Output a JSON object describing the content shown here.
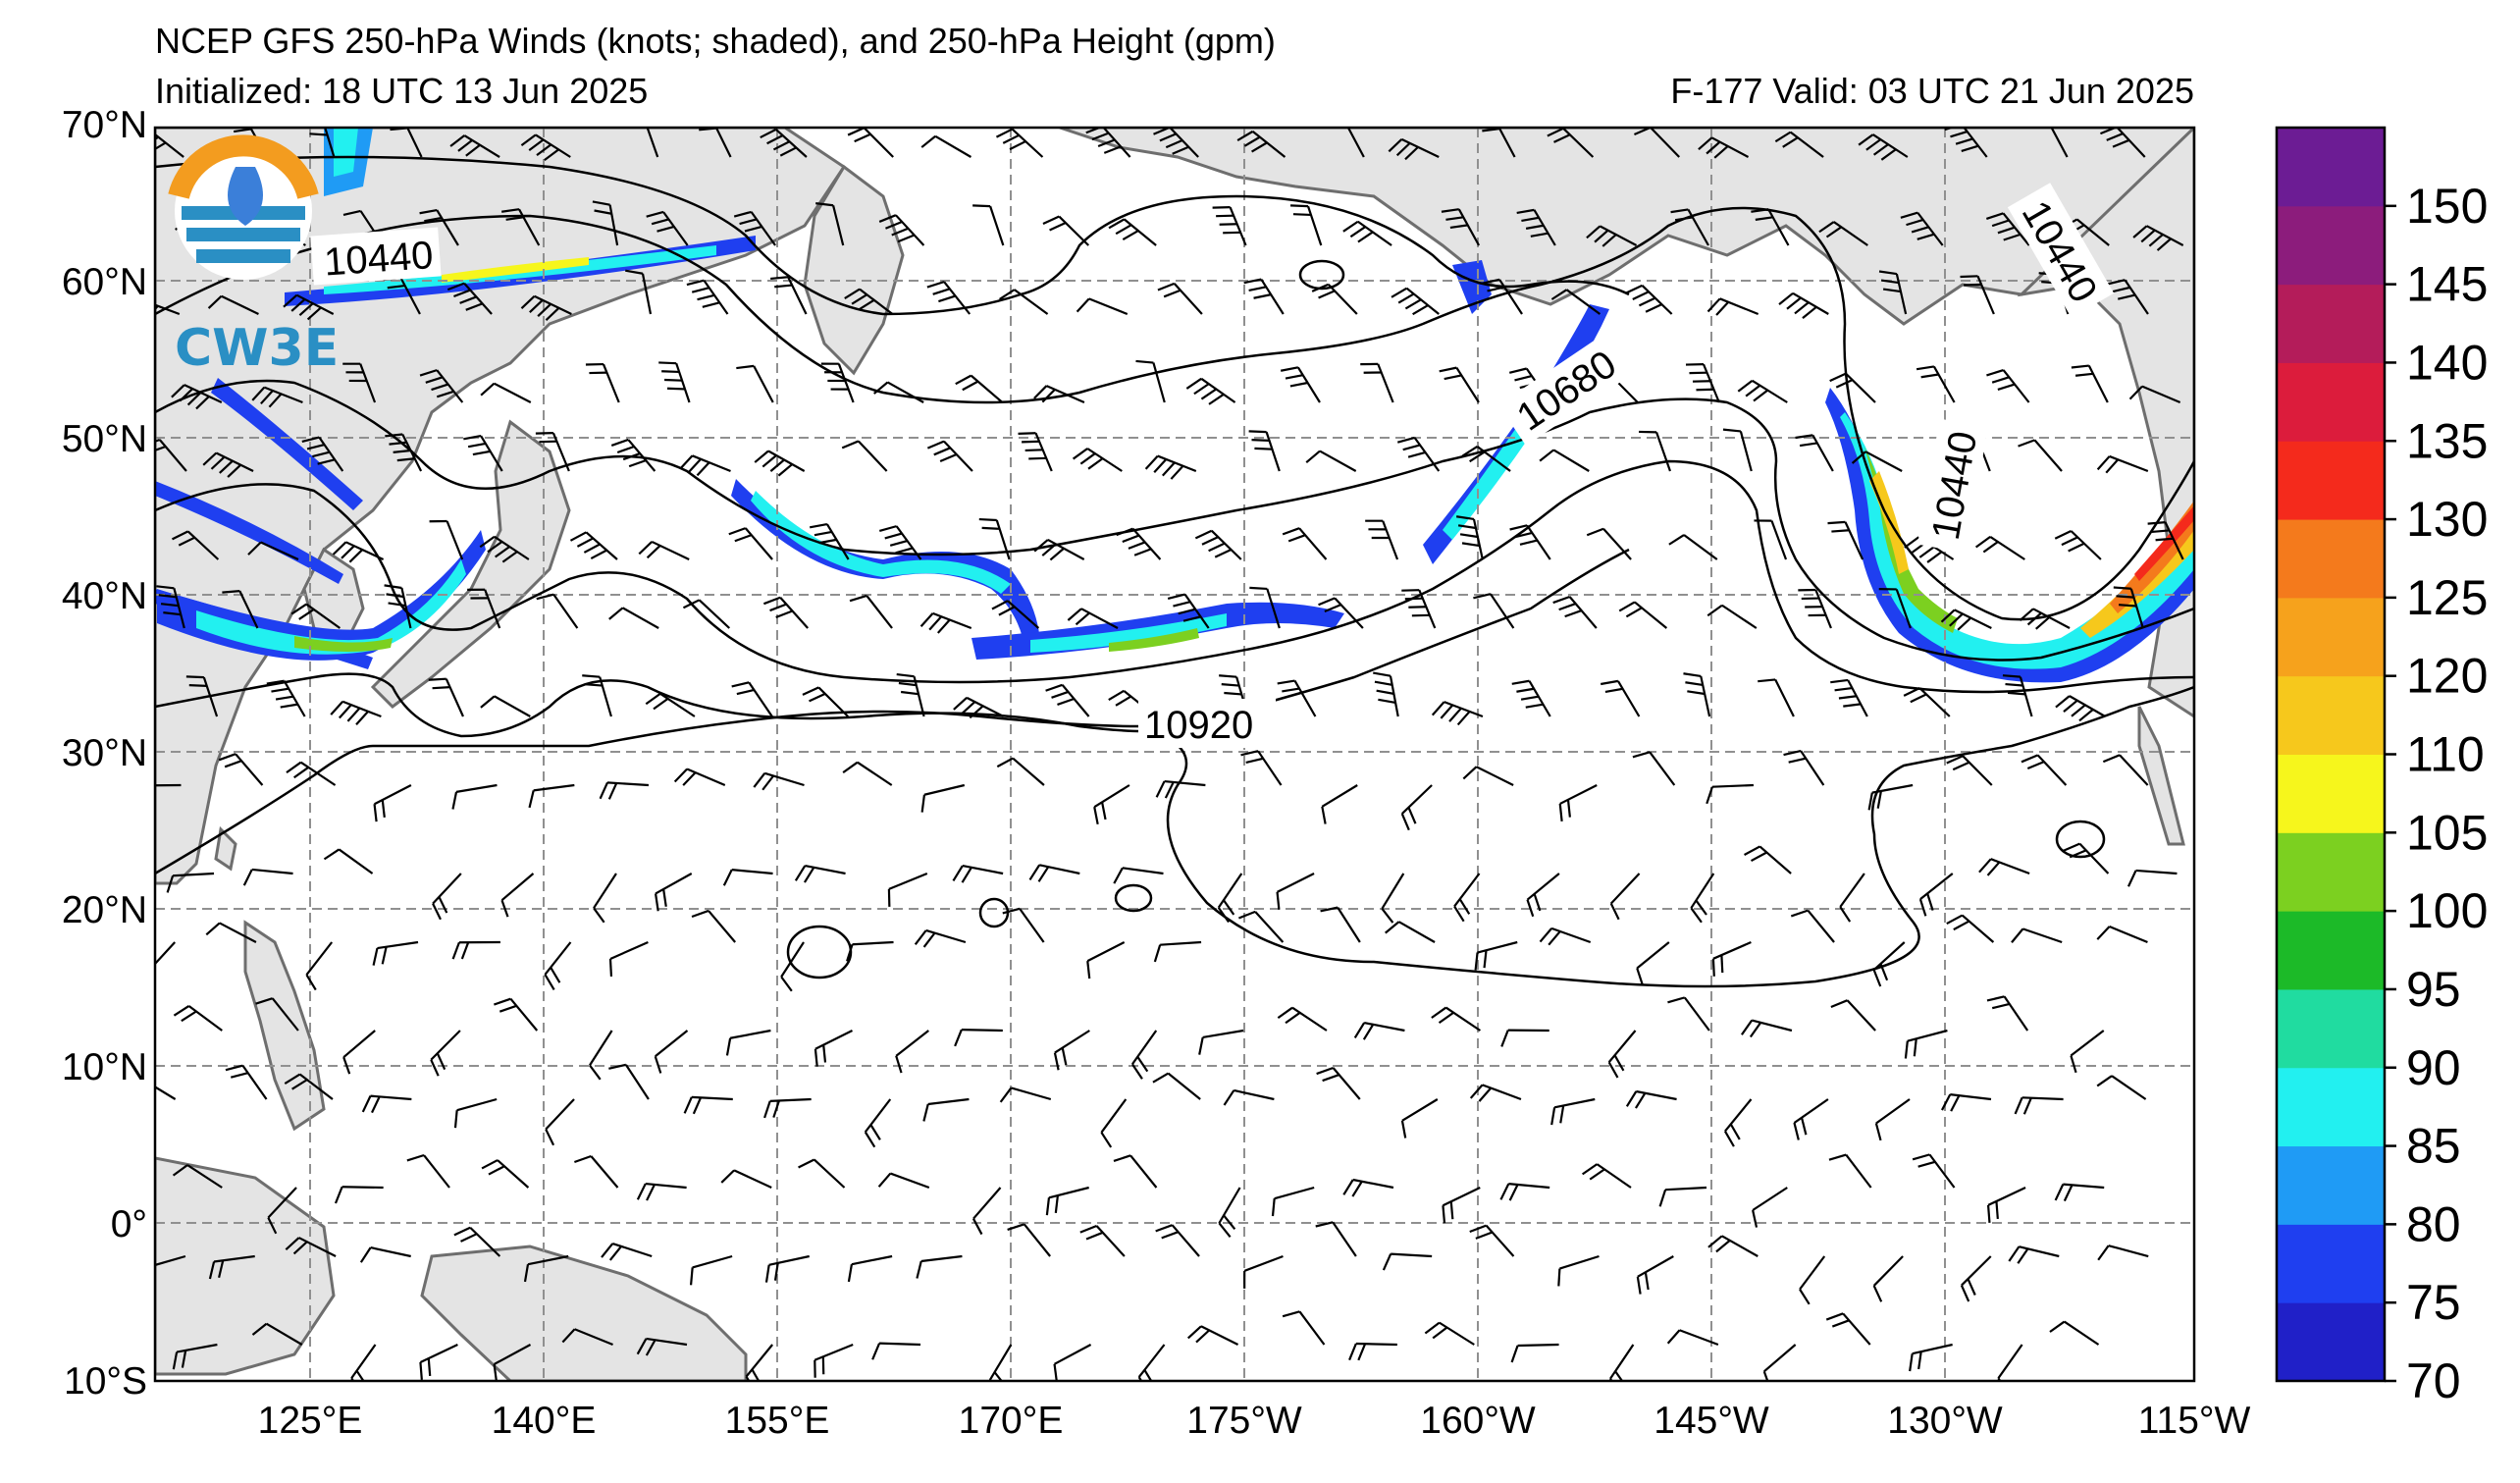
{
  "header": {
    "title": "NCEP GFS 250-hPa Winds (knots; shaded), and 250-hPa Height (gpm)",
    "initialized": "Initialized: 18 UTC 13 Jun 2025",
    "valid": "F-177  Valid: 03 UTC 21 Jun 2025"
  },
  "logo": {
    "text": "CW3E"
  },
  "axes": {
    "lat_labels": [
      "70°N",
      "60°N",
      "50°N",
      "40°N",
      "30°N",
      "20°N",
      "10°N",
      "0°",
      "10°S"
    ],
    "lon_labels": [
      "125°E",
      "140°E",
      "155°E",
      "170°E",
      "175°W",
      "160°W",
      "145°W",
      "130°W",
      "115°W"
    ],
    "lon_extent": "110°E to 115°W",
    "lat_extent": "10°S to 70°N",
    "grid": "dashed gray"
  },
  "contours": {
    "labels": [
      "10440",
      "10680",
      "10920",
      "10440",
      "10440"
    ]
  },
  "colorbar": {
    "ticks": [
      "70",
      "75",
      "80",
      "85",
      "90",
      "95",
      "100",
      "105",
      "110",
      "120",
      "125",
      "130",
      "135",
      "140",
      "145",
      "150"
    ],
    "colors": [
      "#2020c8",
      "#1f3ff0",
      "#1f9bf5",
      "#22f0f0",
      "#20dca0",
      "#1cba28",
      "#7cd020",
      "#f6f61c",
      "#f6c81c",
      "#f6a21c",
      "#f47a1c",
      "#f42a1c",
      "#dc1c3c",
      "#b41c5a",
      "#8c1c7c",
      "#6c1c94"
    ]
  },
  "colors": {
    "land": "#e4e4e4",
    "coast": "#6e6e6e",
    "grid": "#909090",
    "contour": "#000000",
    "barb": "#000000"
  }
}
